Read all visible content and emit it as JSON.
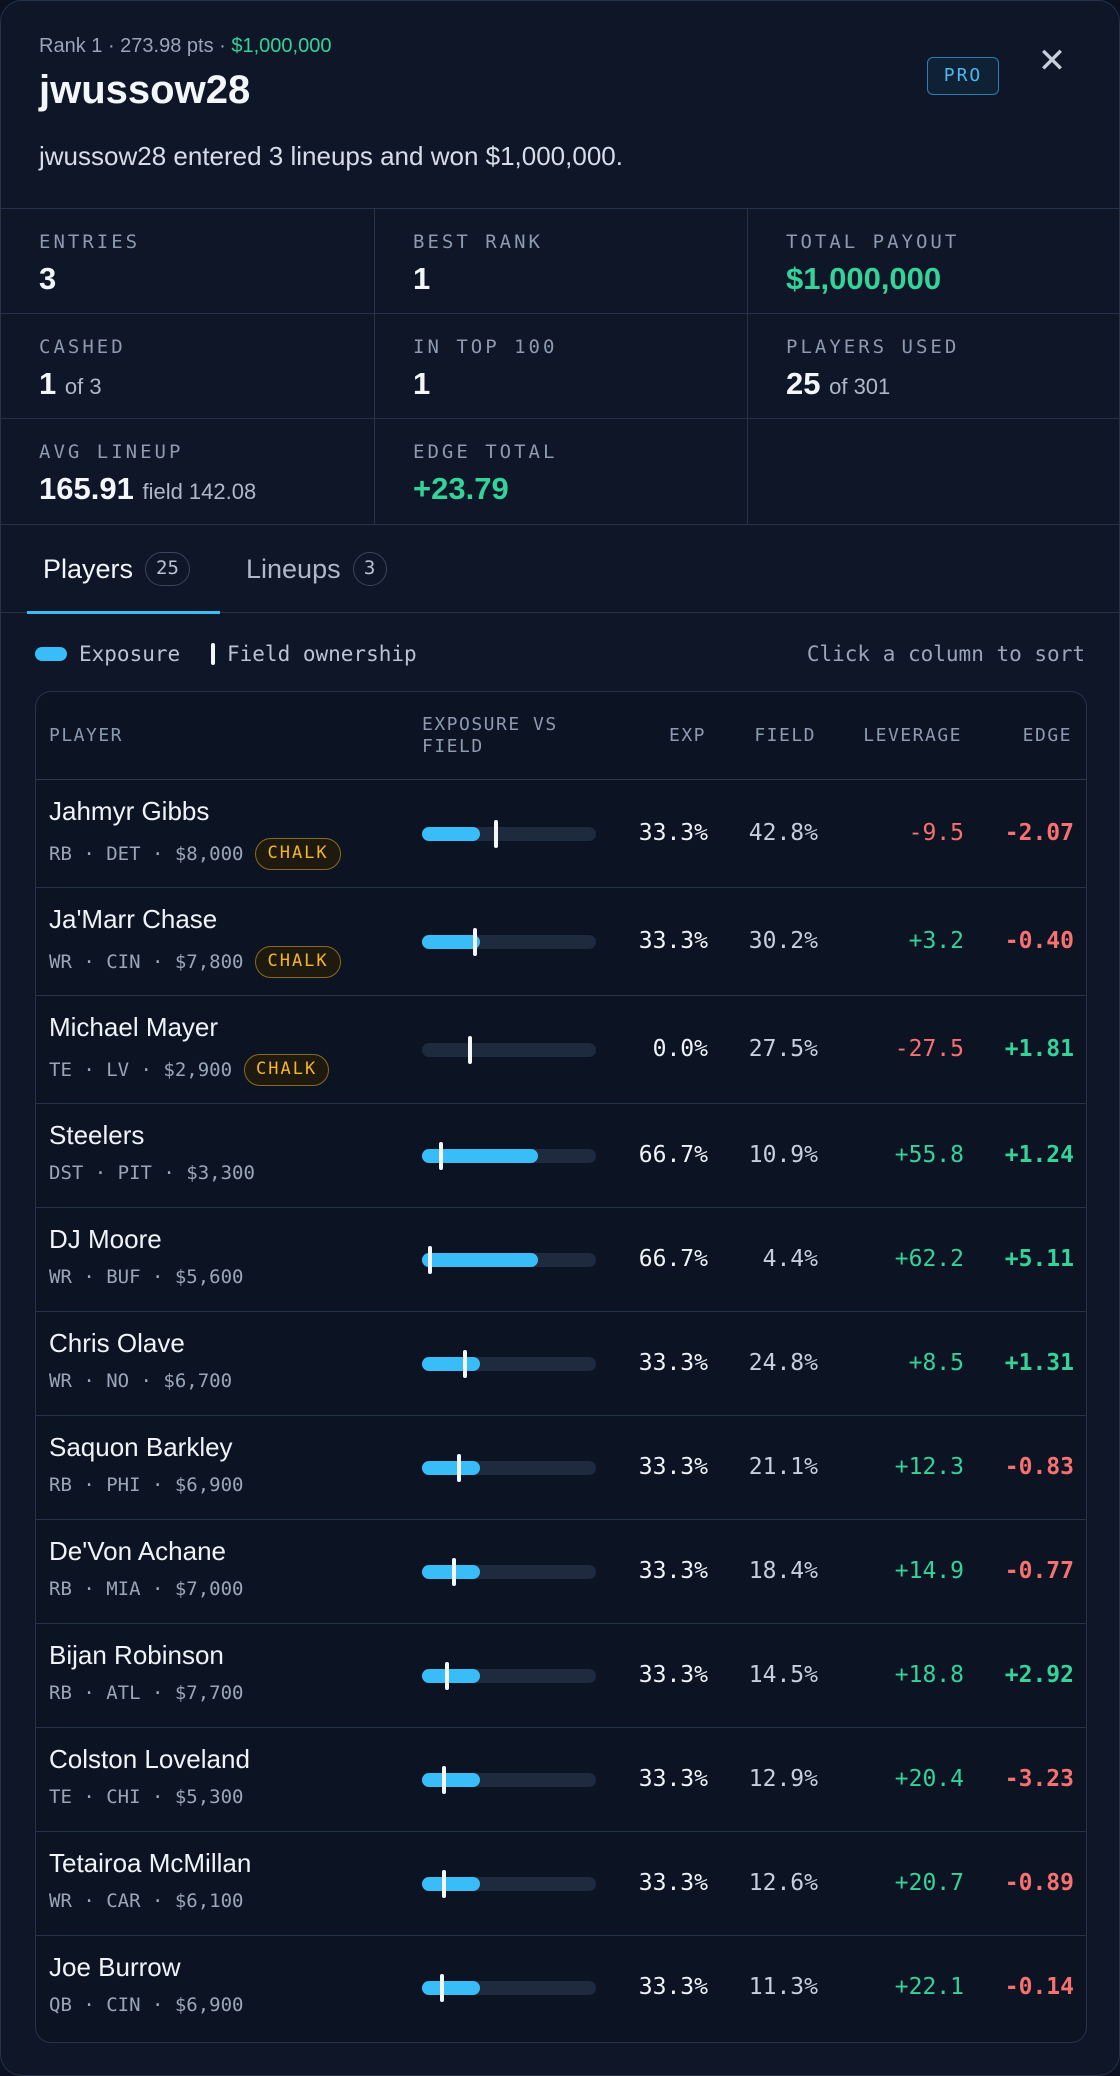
{
  "header": {
    "rank": "Rank 1",
    "points": "273.98 pts",
    "winnings": "$1,000,000",
    "username": "jwussow28",
    "summary": "jwussow28 entered 3 lineups and won $1,000,000.",
    "badge": "PRO",
    "close_glyph": "✕"
  },
  "stats": [
    {
      "label": "ENTRIES",
      "value": "3",
      "sub": "",
      "color": "white"
    },
    {
      "label": "BEST RANK",
      "value": "1",
      "sub": "",
      "color": "white"
    },
    {
      "label": "TOTAL PAYOUT",
      "value": "$1,000,000",
      "sub": "",
      "color": "green"
    },
    {
      "label": "CASHED",
      "value": "1",
      "sub": "of 3",
      "color": "white"
    },
    {
      "label": "IN TOP 100",
      "value": "1",
      "sub": "",
      "color": "white"
    },
    {
      "label": "PLAYERS USED",
      "value": "25",
      "sub": "of 301",
      "color": "white"
    },
    {
      "label": "AVG LINEUP",
      "value": "165.91",
      "sub": "field 142.08",
      "color": "white"
    },
    {
      "label": "EDGE TOTAL",
      "value": "+23.79",
      "sub": "",
      "color": "green"
    }
  ],
  "tabs": [
    {
      "label": "Players",
      "count": "25"
    },
    {
      "label": "Lineups",
      "count": "3"
    }
  ],
  "legend": {
    "exposure": "Exposure",
    "field": "Field ownership",
    "sort_hint": "Click a column to sort"
  },
  "columns": {
    "player": "PLAYER",
    "bar_line1": "EXPOSURE VS",
    "bar_line2": "FIELD",
    "exp": "EXP",
    "field": "FIELD",
    "leverage": "LEVERAGE",
    "edge": "EDGE"
  },
  "colors": {
    "accent": "#38bdf8",
    "positive": "#34d399",
    "negative": "#f87171",
    "chalk": "#f5b629"
  },
  "players": [
    {
      "name": "Jahmyr Gibbs",
      "meta": "RB · DET · $8,000",
      "chalk": "CHALK",
      "exp": "33.3%",
      "field": "42.8%",
      "leverage": "-9.5",
      "edge": "-2.07",
      "exp_val": 33.3,
      "field_val": 42.8
    },
    {
      "name": "Ja'Marr Chase",
      "meta": "WR · CIN · $7,800",
      "chalk": "CHALK",
      "exp": "33.3%",
      "field": "30.2%",
      "leverage": "+3.2",
      "edge": "-0.40",
      "exp_val": 33.3,
      "field_val": 30.2
    },
    {
      "name": "Michael Mayer",
      "meta": "TE · LV · $2,900",
      "chalk": "CHALK",
      "exp": "0.0%",
      "field": "27.5%",
      "leverage": "-27.5",
      "edge": "+1.81",
      "exp_val": 0.0,
      "field_val": 27.5
    },
    {
      "name": "Steelers",
      "meta": "DST · PIT · $3,300",
      "chalk": "",
      "exp": "66.7%",
      "field": "10.9%",
      "leverage": "+55.8",
      "edge": "+1.24",
      "exp_val": 66.7,
      "field_val": 10.9
    },
    {
      "name": "DJ Moore",
      "meta": "WR · BUF · $5,600",
      "chalk": "",
      "exp": "66.7%",
      "field": "4.4%",
      "leverage": "+62.2",
      "edge": "+5.11",
      "exp_val": 66.7,
      "field_val": 4.4
    },
    {
      "name": "Chris Olave",
      "meta": "WR · NO · $6,700",
      "chalk": "",
      "exp": "33.3%",
      "field": "24.8%",
      "leverage": "+8.5",
      "edge": "+1.31",
      "exp_val": 33.3,
      "field_val": 24.8
    },
    {
      "name": "Saquon Barkley",
      "meta": "RB · PHI · $6,900",
      "chalk": "",
      "exp": "33.3%",
      "field": "21.1%",
      "leverage": "+12.3",
      "edge": "-0.83",
      "exp_val": 33.3,
      "field_val": 21.1
    },
    {
      "name": "De'Von Achane",
      "meta": "RB · MIA · $7,000",
      "chalk": "",
      "exp": "33.3%",
      "field": "18.4%",
      "leverage": "+14.9",
      "edge": "-0.77",
      "exp_val": 33.3,
      "field_val": 18.4
    },
    {
      "name": "Bijan Robinson",
      "meta": "RB · ATL · $7,700",
      "chalk": "",
      "exp": "33.3%",
      "field": "14.5%",
      "leverage": "+18.8",
      "edge": "+2.92",
      "exp_val": 33.3,
      "field_val": 14.5
    },
    {
      "name": "Colston Loveland",
      "meta": "TE · CHI · $5,300",
      "chalk": "",
      "exp": "33.3%",
      "field": "12.9%",
      "leverage": "+20.4",
      "edge": "-3.23",
      "exp_val": 33.3,
      "field_val": 12.9
    },
    {
      "name": "Tetairoa McMillan",
      "meta": "WR · CAR · $6,100",
      "chalk": "",
      "exp": "33.3%",
      "field": "12.6%",
      "leverage": "+20.7",
      "edge": "-0.89",
      "exp_val": 33.3,
      "field_val": 12.6
    },
    {
      "name": "Joe Burrow",
      "meta": "QB · CIN · $6,900",
      "chalk": "",
      "exp": "33.3%",
      "field": "11.3%",
      "leverage": "+22.1",
      "edge": "-0.14",
      "exp_val": 33.3,
      "field_val": 11.3
    }
  ]
}
